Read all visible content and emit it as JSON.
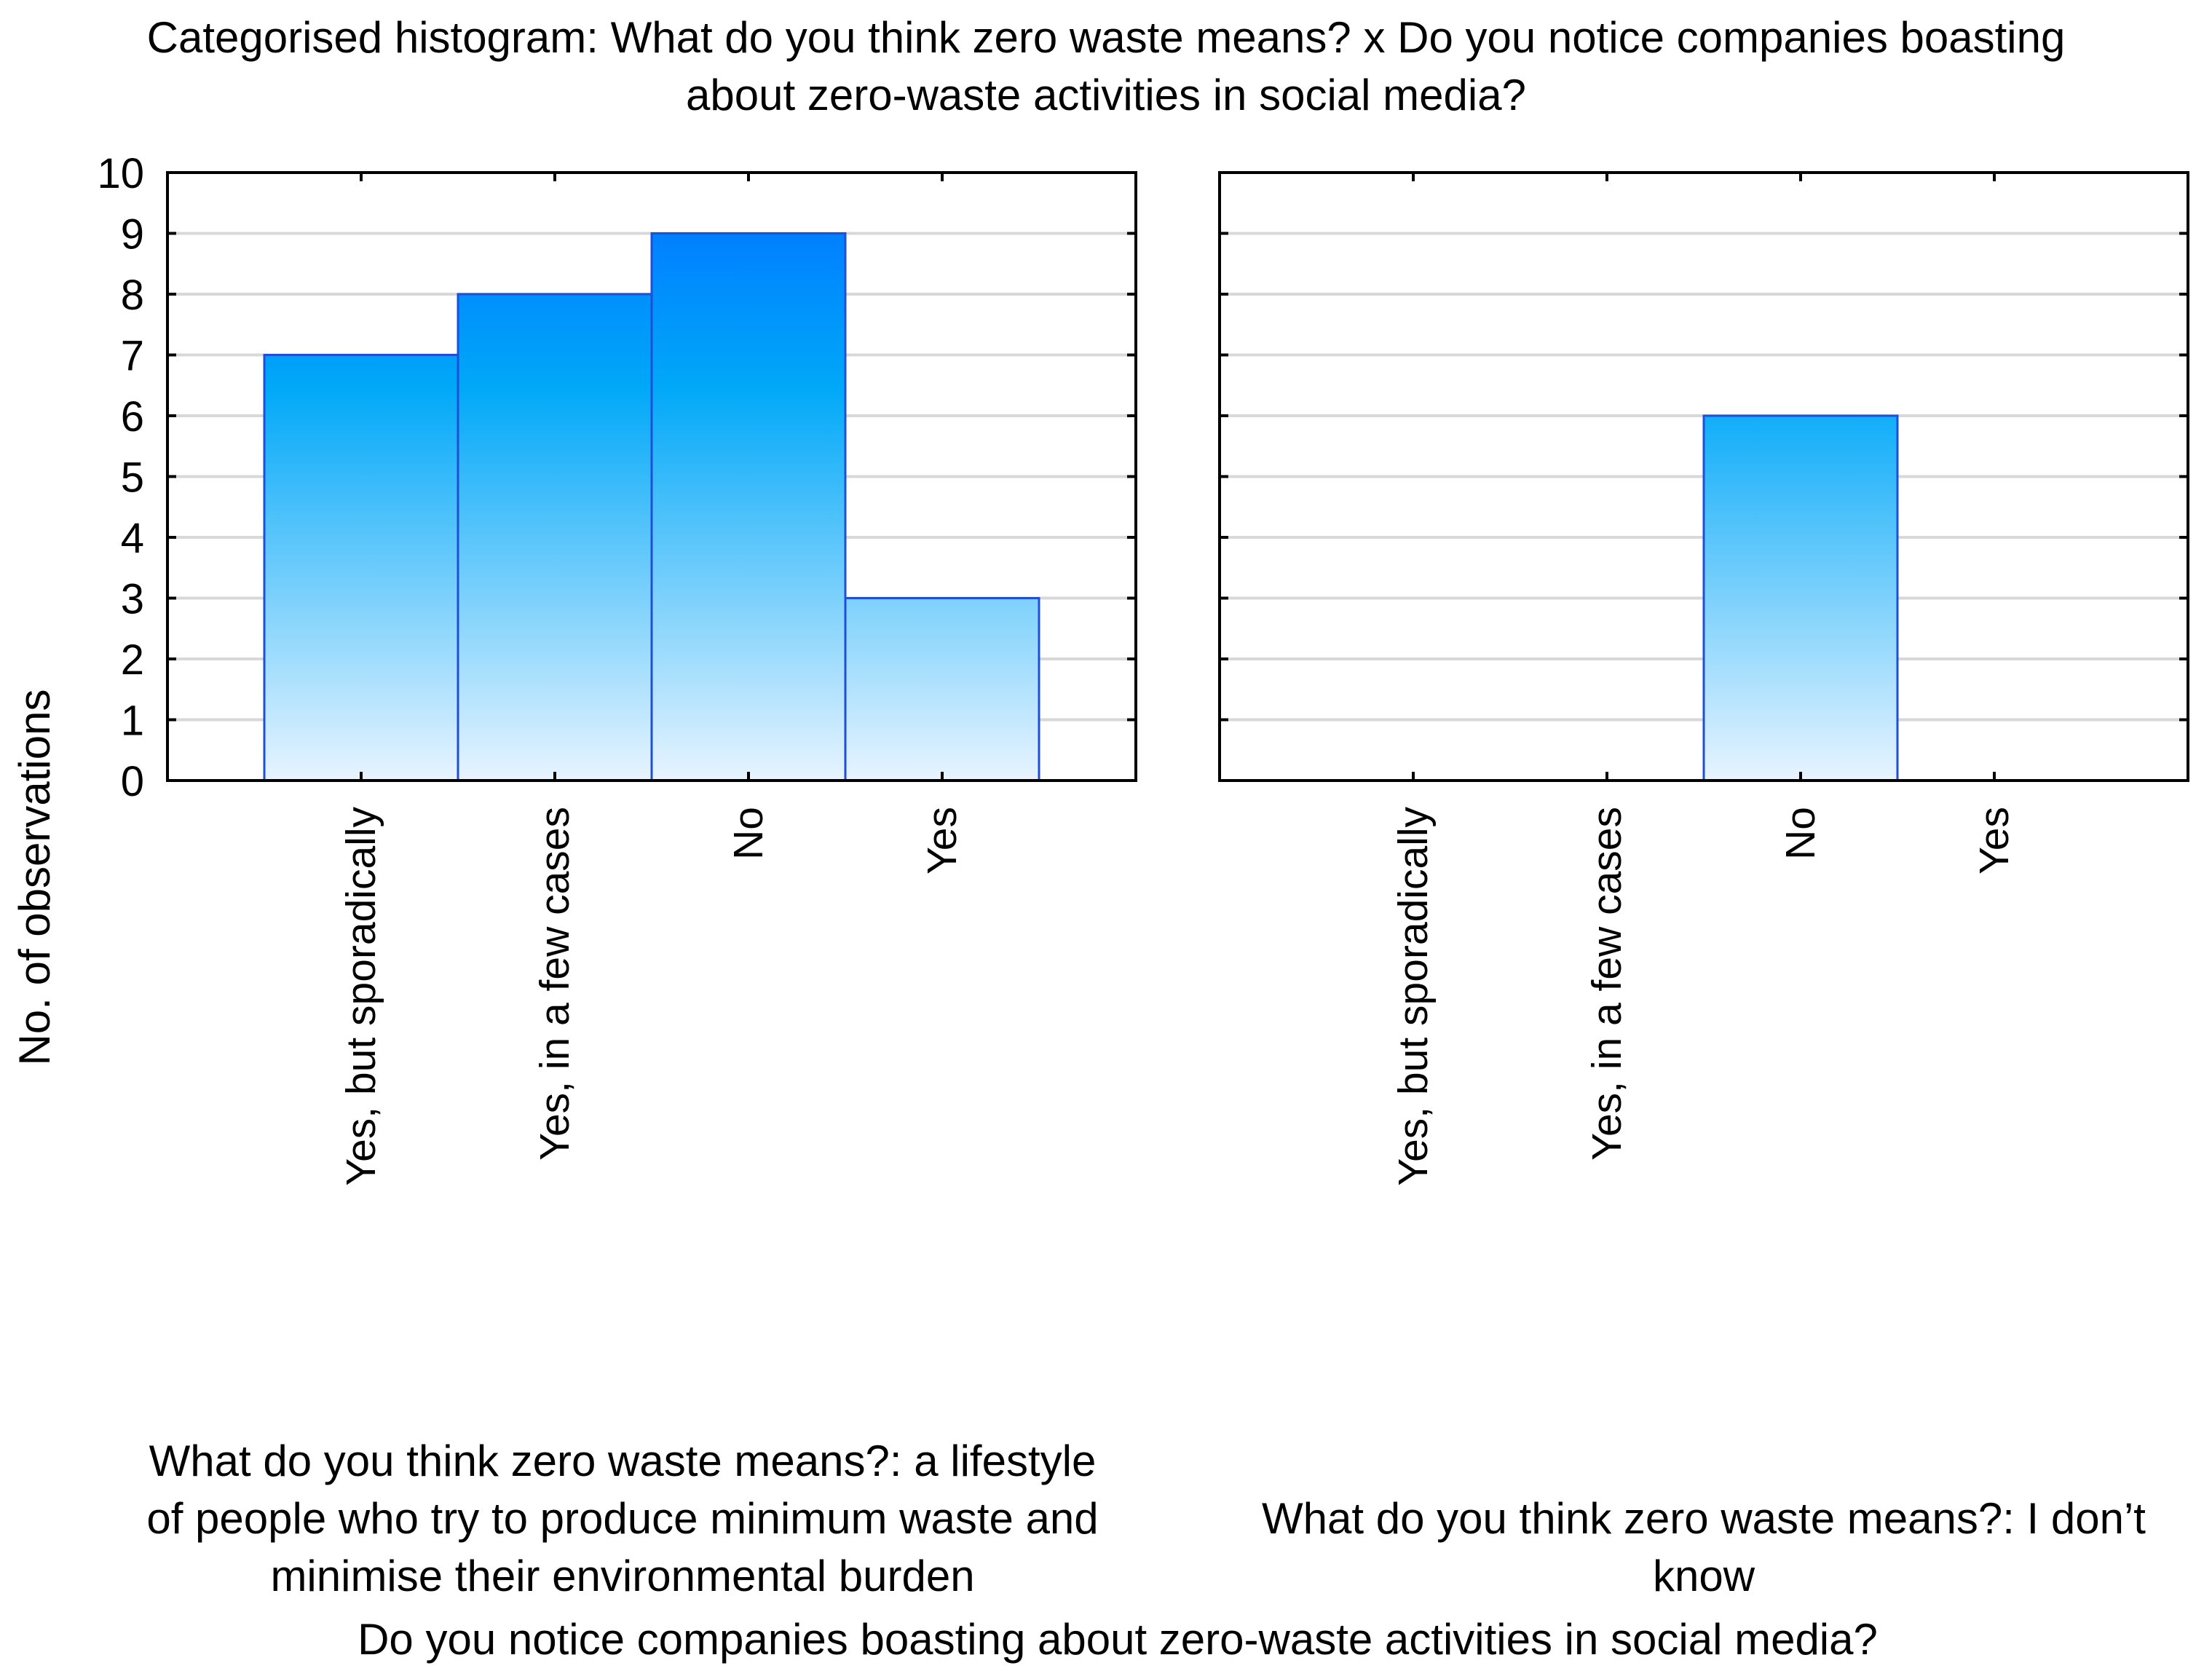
{
  "chart_data": {
    "type": "bar",
    "title_lines": [
      "Categorised histogram: What do you think zero waste means? x Do you notice companies boasting",
      "about zero-waste activities in social media?"
    ],
    "ylabel": "No. of observations",
    "xlabel": "Do you notice companies boasting about zero-waste activities in social media?",
    "ylim": [
      0,
      10
    ],
    "y_ticks": [
      "0",
      "1",
      "2",
      "3",
      "4",
      "5",
      "6",
      "7",
      "8",
      "9",
      "10"
    ],
    "grid": true,
    "colors": {
      "bar_top": "#0080FF",
      "bar_mid": "#00A8F8",
      "bar_bottom": "#E8F4FF",
      "bar_edge": "#1E4FD8",
      "grid": "#D8D8D8",
      "axis": "#000000"
    },
    "panels": [
      {
        "name": "lifestyle",
        "caption_lines": [
          "What do you think zero waste means?: a lifestyle",
          "of people who try to produce minimum waste and",
          "minimise their environmental burden"
        ],
        "categories": [
          "Yes, but sporadically",
          "Yes, in a few cases",
          "No",
          "Yes"
        ],
        "values": [
          7,
          8,
          9,
          3
        ]
      },
      {
        "name": "dont-know",
        "caption_lines": [
          "What do you think zero waste means?: I don’t",
          "know"
        ],
        "categories": [
          "Yes, but sporadically",
          "Yes, in a few cases",
          "No",
          "Yes"
        ],
        "values": [
          0,
          0,
          6,
          0
        ]
      }
    ]
  }
}
